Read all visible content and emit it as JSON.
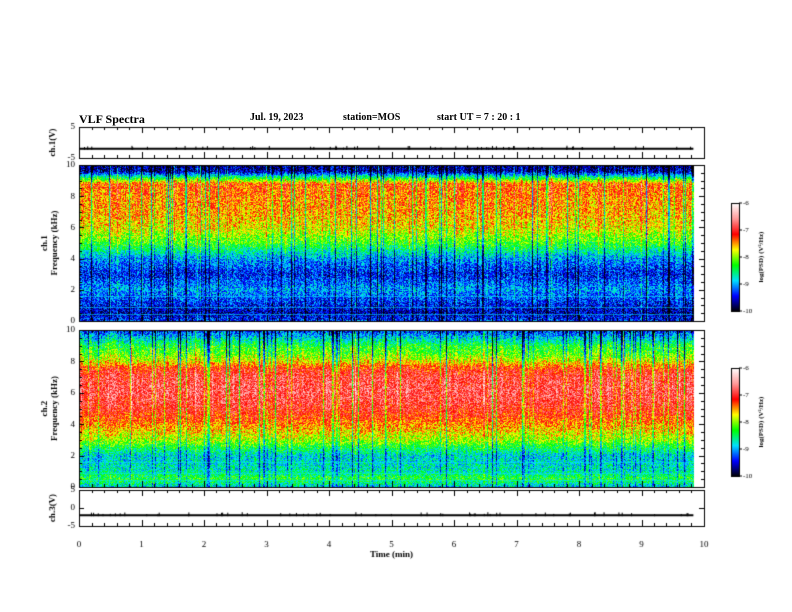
{
  "header": {
    "title": "VLF Spectra",
    "date": "Jul. 19, 2023",
    "station": "station=MOS",
    "start": "start UT =  7 : 20 : 1"
  },
  "chart_data": {
    "type": "heatmap",
    "x": {
      "label": "Time (min)",
      "range": [
        0,
        10
      ],
      "ticks": [
        "0",
        "1",
        "2",
        "3",
        "4",
        "5",
        "6",
        "7",
        "8",
        "9",
        "10"
      ],
      "data_end": 9.83
    },
    "panels": [
      {
        "id": "ch1_wave",
        "type": "line",
        "ylabel": "ch.1(V)",
        "range": [
          -5,
          5
        ],
        "ticks": [
          "5",
          "-5"
        ],
        "level": -2
      },
      {
        "id": "ch1_spec",
        "type": "heatmap",
        "ylabel": "ch.1\nFrequency (kHz)",
        "range": [
          0,
          10
        ],
        "ticks": [
          "0",
          "2",
          "4",
          "6",
          "8",
          "10"
        ],
        "profile": [
          [
            0,
            -9.3
          ],
          [
            0.5,
            -9.6
          ],
          [
            1,
            -9.4
          ],
          [
            2,
            -9.0
          ],
          [
            3,
            -9.4
          ],
          [
            4,
            -9.0
          ],
          [
            5,
            -8.2
          ],
          [
            6,
            -7.7
          ],
          [
            7,
            -7.5
          ],
          [
            8,
            -7.4
          ],
          [
            8.8,
            -7.3
          ],
          [
            9.2,
            -8.4
          ],
          [
            9.6,
            -9.6
          ],
          [
            10,
            -9.7
          ]
        ]
      },
      {
        "id": "ch2_spec",
        "type": "heatmap",
        "ylabel": "ch.2\nFrequency (kHz)",
        "range": [
          0,
          10
        ],
        "ticks": [
          "0",
          "2",
          "4",
          "6",
          "8",
          "10"
        ],
        "profile": [
          [
            0,
            -8.8
          ],
          [
            0.5,
            -8.3
          ],
          [
            1,
            -8.7
          ],
          [
            2,
            -8.8
          ],
          [
            3,
            -7.9
          ],
          [
            4,
            -7.4
          ],
          [
            5,
            -7.0
          ],
          [
            6,
            -6.8
          ],
          [
            7,
            -6.9
          ],
          [
            7.5,
            -7.1
          ],
          [
            8,
            -7.7
          ],
          [
            8.5,
            -8.1
          ],
          [
            9,
            -8.3
          ],
          [
            9.5,
            -8.8
          ],
          [
            10,
            -9.3
          ]
        ]
      },
      {
        "id": "ch3_wave",
        "type": "line",
        "ylabel": "ch.3(V)",
        "range": [
          -5,
          5
        ],
        "ticks": [
          "5",
          "0",
          "-5"
        ],
        "level": -2
      }
    ],
    "colorbar": {
      "label": "log(PSD) (V²/Hz)",
      "range": [
        -10,
        -6
      ],
      "ticks": [
        "-6",
        "-7",
        "-8",
        "-9",
        "-10"
      ],
      "colors": [
        "#000000",
        "#0000ff",
        "#00e0ff",
        "#00ff00",
        "#ffff00",
        "#ff0000",
        "#ff9999",
        "#ffffff"
      ]
    }
  }
}
